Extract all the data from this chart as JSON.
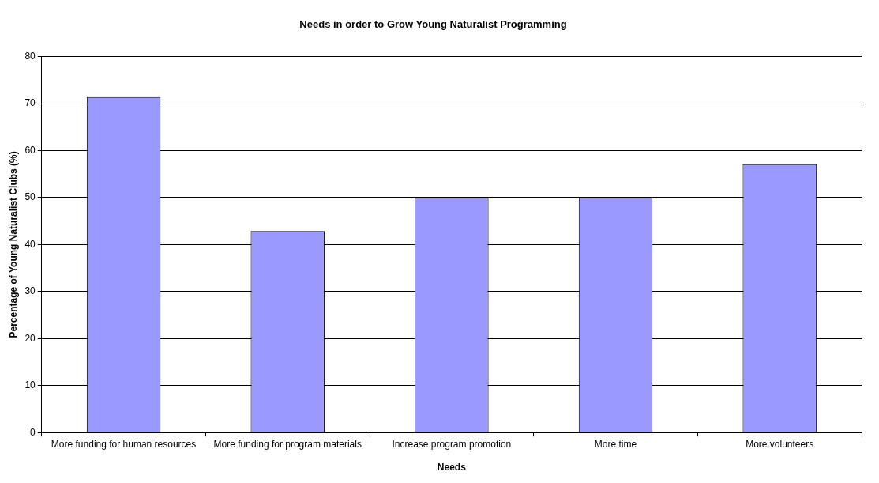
{
  "chart_data": {
    "type": "bar",
    "title": "Needs in order to Grow Young Naturalist Programming",
    "xlabel": "Needs",
    "ylabel": "Percentage of Young Naturalist Clubs (%)",
    "categories": [
      "More funding for human resources",
      "More funding for program materials",
      "Increase program promotion",
      "More time",
      "More volunteers"
    ],
    "values": [
      71.4,
      42.9,
      50,
      50,
      57.1
    ],
    "color": "#9999ff",
    "ylim": [
      0,
      80
    ],
    "yticks": [
      0,
      10,
      20,
      30,
      40,
      50,
      60,
      70,
      80
    ],
    "grid": "y",
    "legend": false
  }
}
